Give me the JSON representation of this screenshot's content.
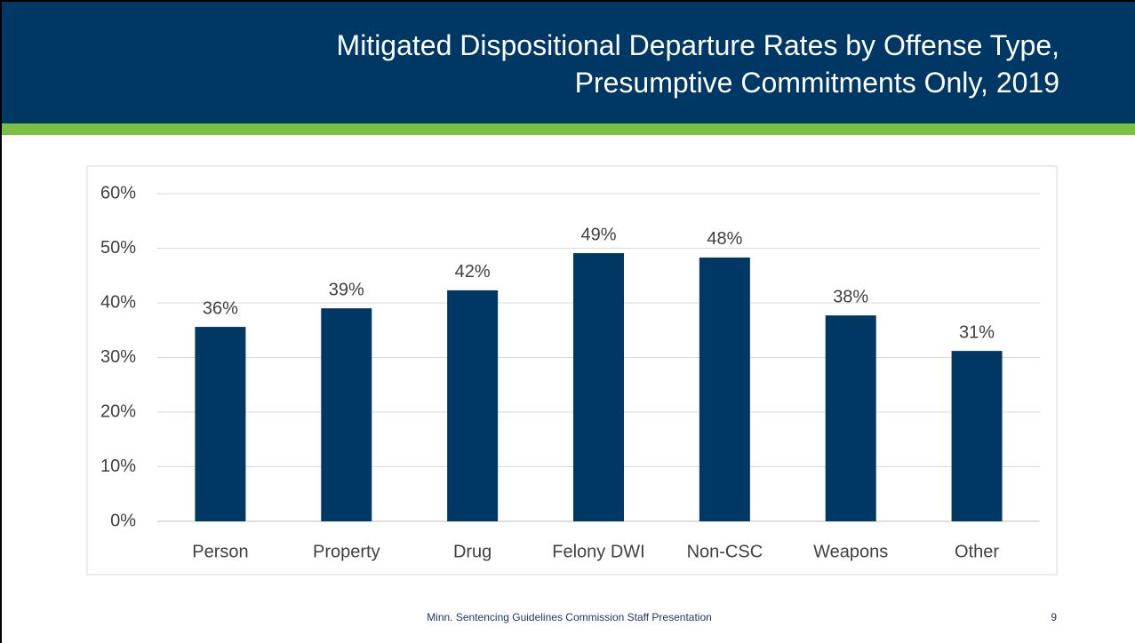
{
  "chart_data": {
    "type": "bar",
    "title": "Mitigated Dispositional Departure Rates by Offense Type, Presumptive Commitments Only, 2019",
    "categories": [
      "Person",
      "Property",
      "Drug",
      "Felony DWI",
      "Non-CSC",
      "Weapons",
      "Other"
    ],
    "values": [
      35.6,
      39.0,
      42.3,
      49.1,
      48.3,
      37.7,
      31.2
    ],
    "value_labels": [
      "36%",
      "39%",
      "42%",
      "49%",
      "48%",
      "38%",
      "31%"
    ],
    "color": "#003865",
    "ylim": [
      0,
      60
    ],
    "yticks": [
      {
        "value": 0,
        "label": "0%"
      },
      {
        "value": 10,
        "label": "10%"
      },
      {
        "value": 20,
        "label": "20%"
      },
      {
        "value": 30,
        "label": "30%"
      },
      {
        "value": 40,
        "label": "40%"
      },
      {
        "value": 50,
        "label": "50%"
      },
      {
        "value": 60,
        "label": "60%"
      }
    ],
    "grid": true
  },
  "slide": {
    "footer": "Minn. Sentencing Guidelines Commission Staff Presentation",
    "page_number": "9"
  }
}
